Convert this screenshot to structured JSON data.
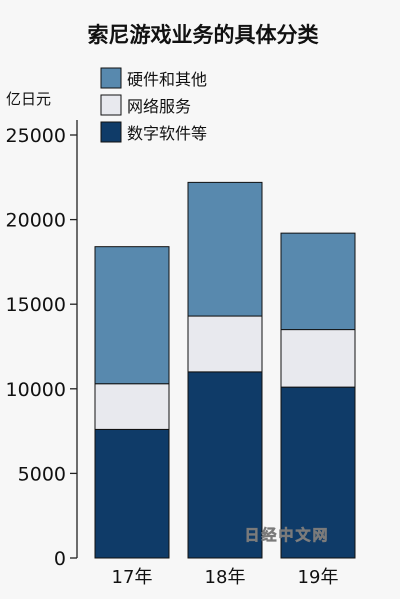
{
  "chart_data": {
    "type": "bar",
    "stacked": true,
    "title": "索尼游戏业务的具体分类",
    "ylabel": "亿日元",
    "xlabel": "",
    "categories": [
      "17年",
      "18年",
      "19年"
    ],
    "series": [
      {
        "name": "数字软件等",
        "values": [
          7600,
          11000,
          10100
        ],
        "color": "#0f3b68"
      },
      {
        "name": "网络服务",
        "values": [
          2700,
          3300,
          3400
        ],
        "color": "#e8e9ee"
      },
      {
        "name": "硬件和其他",
        "values": [
          8100,
          7900,
          5700
        ],
        "color": "#5889ae"
      }
    ],
    "ylim": [
      0,
      25000
    ],
    "yticks": [
      0,
      5000,
      10000,
      15000,
      20000,
      25000
    ],
    "ytick_labels": [
      "0",
      "5000",
      "10000",
      "15000",
      "20000",
      "25000"
    ],
    "legend_order": [
      "硬件和其他",
      "网络服务",
      "数字软件等"
    ],
    "legend_position": "top-left",
    "grid": false
  },
  "watermark": "日经中文网"
}
